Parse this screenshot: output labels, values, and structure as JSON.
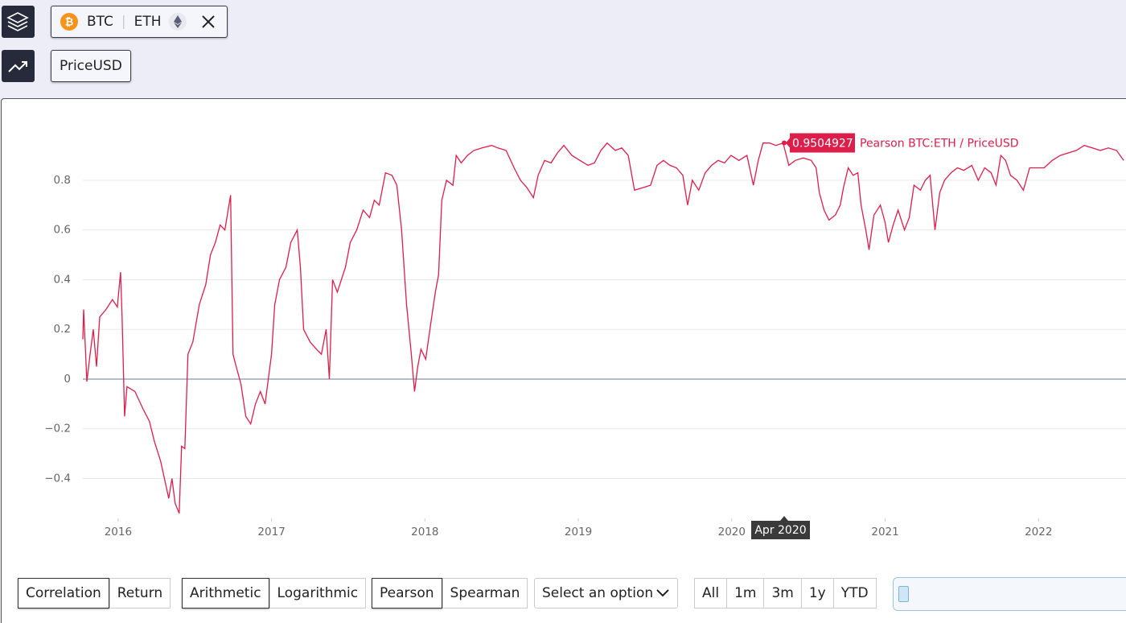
{
  "assets": [
    "BTC",
    "ETH"
  ],
  "metric": "PriceUSD",
  "chart_data": {
    "type": "line",
    "x": [
      2015.77,
      2015.775,
      2015.796,
      2015.817,
      2015.838,
      2015.859,
      2015.88,
      2015.921,
      2015.963,
      2015.995,
      2016.016,
      2016.026,
      2016.042,
      2016.058,
      2016.11,
      2016.162,
      2016.204,
      2016.236,
      2016.277,
      2016.309,
      2016.33,
      2016.351,
      2016.372,
      2016.398,
      2016.414,
      2016.435,
      2016.455,
      2016.487,
      2016.529,
      2016.571,
      2016.602,
      2016.634,
      2016.665,
      2016.696,
      2016.733,
      2016.749,
      2016.77,
      2016.801,
      2016.832,
      2016.864,
      2016.895,
      2016.927,
      2016.958,
      2016.979,
      2017.0,
      2017.021,
      2017.052,
      2017.094,
      2017.126,
      2017.168,
      2017.188,
      2017.209,
      2017.251,
      2017.293,
      2017.325,
      2017.356,
      2017.377,
      2017.398,
      2017.429,
      2017.482,
      2017.513,
      2017.555,
      2017.597,
      2017.639,
      2017.67,
      2017.702,
      2017.743,
      2017.785,
      2017.817,
      2017.848,
      2017.88,
      2017.911,
      2017.932,
      2017.953,
      2017.974,
      2018.005,
      2018.037,
      2018.068,
      2018.089,
      2018.11,
      2018.141,
      2018.183,
      2018.204,
      2018.236,
      2018.277,
      2018.319,
      2018.372,
      2018.435,
      2018.476,
      2018.529,
      2018.581,
      2018.623,
      2018.665,
      2018.707,
      2018.738,
      2018.78,
      2018.822,
      2018.864,
      2018.906,
      2018.958,
      2019.01,
      2019.063,
      2019.105,
      2019.147,
      2019.188,
      2019.241,
      2019.283,
      2019.325,
      2019.366,
      2019.419,
      2019.471,
      2019.513,
      2019.555,
      2019.597,
      2019.639,
      2019.681,
      2019.712,
      2019.743,
      2019.785,
      2019.827,
      2019.869,
      2019.911,
      2019.953,
      2019.995,
      2020.047,
      2020.099,
      2020.141,
      2020.173,
      2020.204,
      2020.246,
      2020.288,
      2020.335,
      2020.372,
      2020.414,
      2020.466,
      2020.518,
      2020.55,
      2020.571,
      2020.602,
      2020.634,
      2020.675,
      2020.707,
      2020.728,
      2020.759,
      2020.791,
      2020.822,
      2020.843,
      2020.874,
      2020.895,
      2020.927,
      2020.969,
      2021.0,
      2021.021,
      2021.052,
      2021.084,
      2021.126,
      2021.157,
      2021.188,
      2021.23,
      2021.262,
      2021.293,
      2021.325,
      2021.356,
      2021.387,
      2021.429,
      2021.471,
      2021.513,
      2021.565,
      2021.607,
      2021.649,
      2021.691,
      2021.723,
      2021.754,
      2021.785,
      2021.817,
      2021.859,
      2021.901,
      2021.942,
      2021.995,
      2022.037,
      2022.089,
      2022.141,
      2022.194,
      2022.246,
      2022.298,
      2022.351,
      2022.403,
      2022.455,
      2022.508,
      2022.555
    ],
    "series": [
      {
        "name": "Pearson BTC:ETH / PriceUSD",
        "color": "#dc1e4a",
        "values": [
          0.16,
          0.28,
          -0.01,
          0.1,
          0.2,
          0.05,
          0.25,
          0.28,
          0.32,
          0.29,
          0.43,
          0.25,
          -0.15,
          -0.03,
          -0.05,
          -0.12,
          -0.17,
          -0.25,
          -0.33,
          -0.42,
          -0.48,
          -0.4,
          -0.5,
          -0.54,
          -0.27,
          -0.28,
          0.1,
          0.15,
          0.3,
          0.38,
          0.5,
          0.55,
          0.62,
          0.6,
          0.74,
          0.1,
          0.05,
          -0.02,
          -0.15,
          -0.18,
          -0.1,
          -0.05,
          -0.1,
          0.0,
          0.1,
          0.3,
          0.4,
          0.45,
          0.55,
          0.6,
          0.45,
          0.2,
          0.15,
          0.12,
          0.1,
          0.2,
          0.0,
          0.4,
          0.35,
          0.45,
          0.55,
          0.6,
          0.68,
          0.65,
          0.72,
          0.7,
          0.83,
          0.82,
          0.78,
          0.6,
          0.3,
          0.1,
          -0.05,
          0.05,
          0.12,
          0.08,
          0.22,
          0.35,
          0.42,
          0.72,
          0.8,
          0.78,
          0.9,
          0.87,
          0.9,
          0.92,
          0.93,
          0.94,
          0.93,
          0.92,
          0.85,
          0.8,
          0.77,
          0.73,
          0.82,
          0.88,
          0.87,
          0.91,
          0.94,
          0.9,
          0.88,
          0.86,
          0.87,
          0.92,
          0.95,
          0.92,
          0.93,
          0.9,
          0.76,
          0.77,
          0.78,
          0.86,
          0.88,
          0.86,
          0.85,
          0.82,
          0.7,
          0.8,
          0.76,
          0.83,
          0.86,
          0.88,
          0.87,
          0.9,
          0.88,
          0.9,
          0.78,
          0.88,
          0.95,
          0.95,
          0.94,
          0.95,
          0.86,
          0.88,
          0.89,
          0.88,
          0.85,
          0.75,
          0.68,
          0.64,
          0.66,
          0.7,
          0.77,
          0.85,
          0.82,
          0.83,
          0.7,
          0.6,
          0.52,
          0.66,
          0.7,
          0.63,
          0.55,
          0.62,
          0.68,
          0.6,
          0.65,
          0.78,
          0.76,
          0.8,
          0.82,
          0.6,
          0.75,
          0.8,
          0.83,
          0.85,
          0.84,
          0.86,
          0.8,
          0.85,
          0.83,
          0.78,
          0.9,
          0.88,
          0.82,
          0.8,
          0.76,
          0.85,
          0.85,
          0.85,
          0.88,
          0.9,
          0.91,
          0.92,
          0.94,
          0.93,
          0.92,
          0.93,
          0.92,
          0.88
        ]
      }
    ],
    "xlim": [
      2015.77,
      2022.57
    ],
    "xticks": [
      2016,
      2017,
      2018,
      2019,
      2020,
      2021,
      2022
    ],
    "ylim": [
      -0.56,
      1.07
    ],
    "yticks": [
      {
        "value": -0.4,
        "label": "−0.4"
      },
      {
        "value": -0.2,
        "label": "−0.2"
      },
      0,
      0.2,
      0.4,
      0.6,
      0.8
    ],
    "grid": true,
    "tooltip": {
      "x": "Apr 2020",
      "value": 0.9504927
    }
  },
  "controls": {
    "mode": {
      "options": [
        "Correlation",
        "Return"
      ],
      "selected": 0
    },
    "scale": {
      "options": [
        "Arithmetic",
        "Logarithmic"
      ],
      "selected": 0
    },
    "method": {
      "options": [
        "Pearson",
        "Spearman"
      ],
      "selected": 0
    },
    "select": "Select an option",
    "ranges": [
      "All",
      "1m",
      "3m",
      "1y",
      "YTD"
    ]
  }
}
